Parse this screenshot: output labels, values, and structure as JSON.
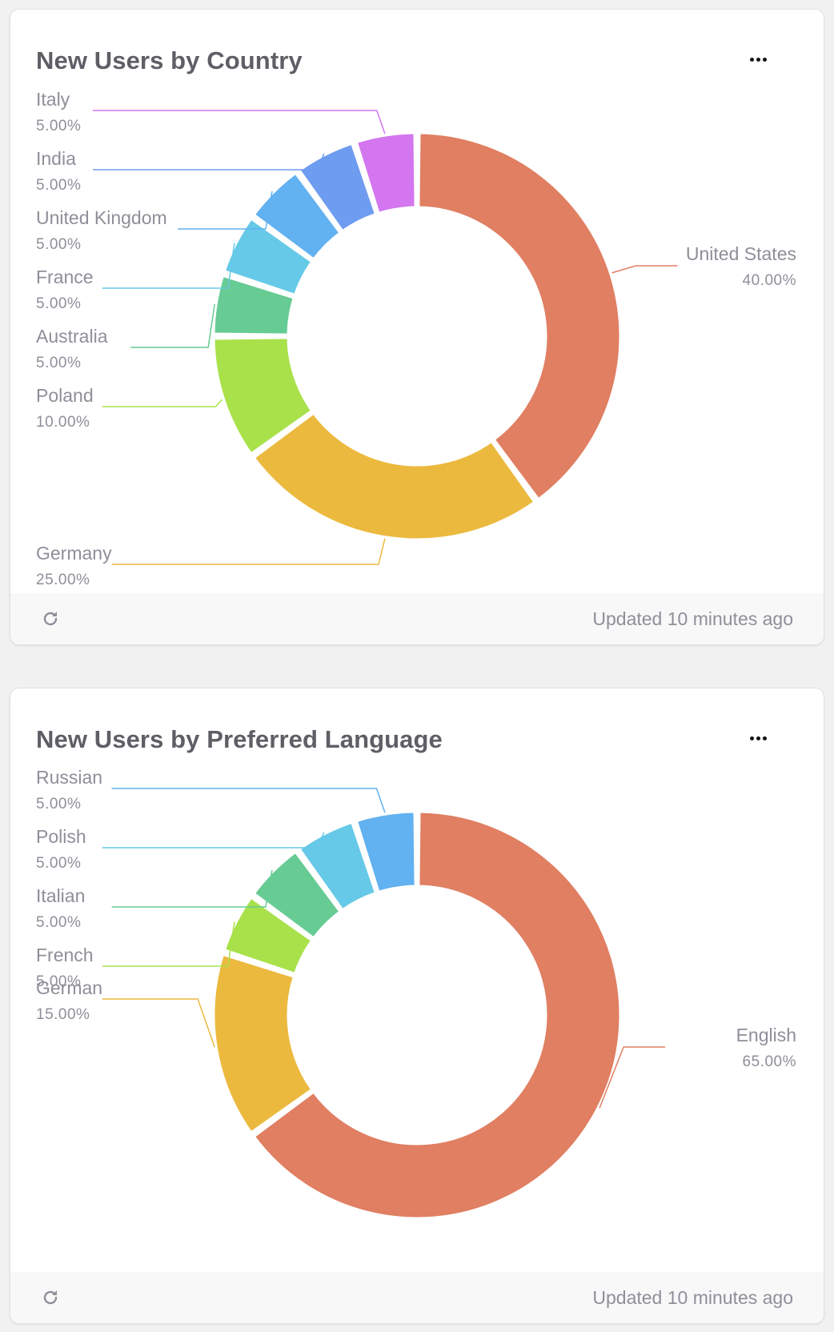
{
  "cards": [
    {
      "title": "New Users by Country",
      "more_label": "...",
      "footer": {
        "updated": "Updated 10 minutes ago",
        "refresh_icon": "refresh-icon"
      }
    },
    {
      "title": "New Users by Preferred Language",
      "more_label": "...",
      "footer": {
        "updated": "Updated 10 minutes ago",
        "refresh_icon": "refresh-icon"
      }
    }
  ],
  "chart_data": [
    {
      "type": "pie",
      "donut": true,
      "title": "New Users by Country",
      "categories": [
        "United States",
        "Germany",
        "Poland",
        "Australia",
        "France",
        "United Kingdom",
        "India",
        "Italy"
      ],
      "values": [
        40,
        25,
        10,
        5,
        5,
        5,
        5,
        5
      ],
      "labels": [
        "40.00%",
        "25.00%",
        "10.00%",
        "5.00%",
        "5.00%",
        "5.00%",
        "5.00%",
        "5.00%"
      ],
      "colors": [
        "#e07f62",
        "#ebb93e",
        "#a9e14b",
        "#67cb94",
        "#66c9e8",
        "#62b1f0",
        "#6e9cf0",
        "#d376ef"
      ],
      "legend": "leader-line labels",
      "start_angle": "12 o'clock, clockwise"
    },
    {
      "type": "pie",
      "donut": true,
      "title": "New Users by Preferred Language",
      "categories": [
        "English",
        "German",
        "French",
        "Italian",
        "Polish",
        "Russian"
      ],
      "values": [
        65,
        15,
        5,
        5,
        5,
        5
      ],
      "labels": [
        "65.00%",
        "15.00%",
        "5.00%",
        "5.00%",
        "5.00%",
        "5.00%"
      ],
      "colors": [
        "#e07f62",
        "#ebb93e",
        "#a9e14b",
        "#67cb94",
        "#66c9e8",
        "#62b1f0"
      ],
      "legend": "leader-line labels",
      "start_angle": "12 o'clock, clockwise"
    }
  ]
}
